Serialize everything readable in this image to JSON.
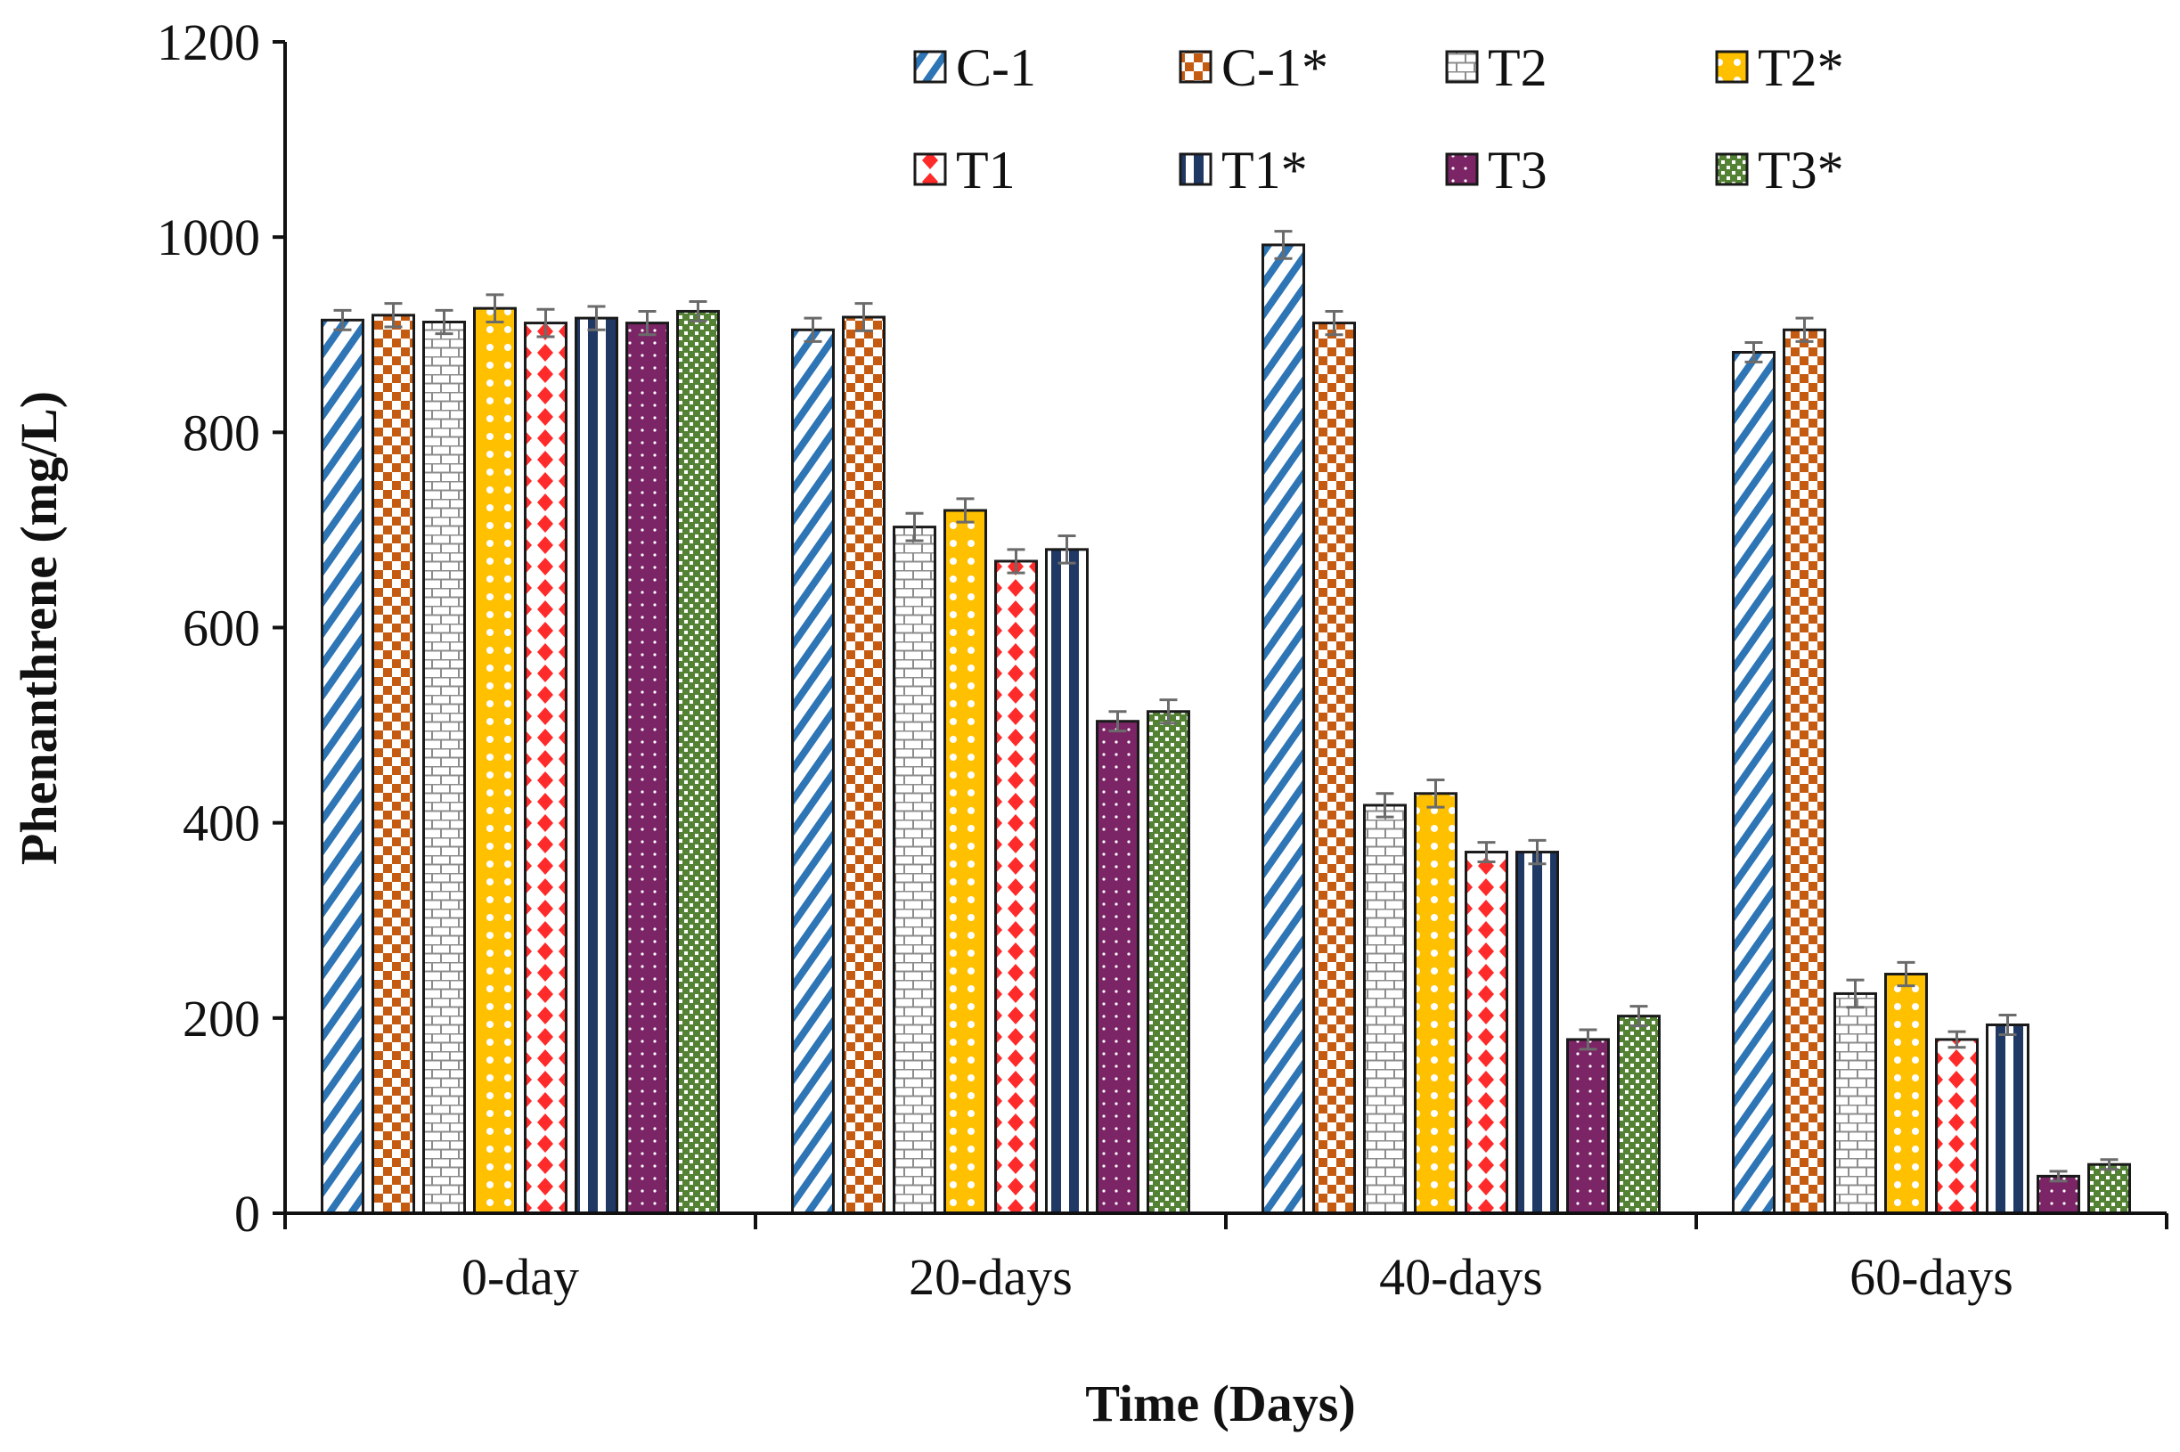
{
  "chart_data": {
    "type": "bar",
    "title": "",
    "xlabel": "Time (Days)",
    "ylabel": "Phenanthrene (mg/L)",
    "ylim": [
      0,
      1200
    ],
    "yticks": [
      0,
      200,
      400,
      600,
      800,
      1000,
      1200
    ],
    "categories": [
      "0-day",
      "20-days",
      "40-days",
      "60-days"
    ],
    "series": [
      {
        "name": "C-1",
        "pattern": "diag",
        "color": "#2e75b6",
        "values": [
          915,
          905,
          992,
          882
        ],
        "errors": [
          10,
          12,
          14,
          10
        ]
      },
      {
        "name": "C-1*",
        "pattern": "check",
        "color": "#c55a11",
        "values": [
          920,
          918,
          912,
          905
        ],
        "errors": [
          12,
          14,
          12,
          12
        ]
      },
      {
        "name": "T2",
        "pattern": "brick",
        "color": "#8c8c8c",
        "values": [
          913,
          703,
          418,
          225
        ],
        "errors": [
          12,
          14,
          12,
          14
        ]
      },
      {
        "name": "T2*",
        "pattern": "circles",
        "color": "#ffc000",
        "values": [
          927,
          720,
          430,
          245
        ],
        "errors": [
          14,
          12,
          14,
          12
        ]
      },
      {
        "name": "T1",
        "pattern": "diamond",
        "color": "#ff2a2a",
        "values": [
          912,
          668,
          370,
          178
        ],
        "errors": [
          14,
          12,
          10,
          8
        ]
      },
      {
        "name": "T1*",
        "pattern": "vlines",
        "color": "#1f3864",
        "values": [
          917,
          680,
          370,
          193
        ],
        "errors": [
          12,
          14,
          12,
          10
        ]
      },
      {
        "name": "T3",
        "pattern": "dots",
        "color": "#7b2466",
        "values": [
          912,
          504,
          178,
          38
        ],
        "errors": [
          12,
          10,
          10,
          5
        ]
      },
      {
        "name": "T3*",
        "pattern": "weave",
        "color": "#548235",
        "values": [
          924,
          514,
          202,
          50
        ],
        "errors": [
          10,
          12,
          10,
          5
        ]
      }
    ],
    "legend_position": "top"
  }
}
